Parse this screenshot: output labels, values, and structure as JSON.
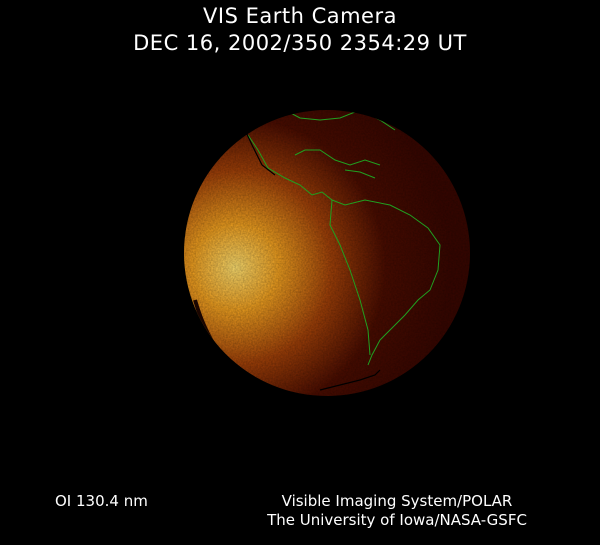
{
  "header": {
    "title": "VIS Earth Camera",
    "timestamp": "DEC 16, 2002/350 2354:29 UT"
  },
  "footer": {
    "wavelength": "OI  130.4 nm",
    "instrument": "Visible Imaging System/POLAR",
    "credit": "The University of Iowa/NASA-GSFC"
  },
  "colors": {
    "background": "#000000",
    "dayglow_bright": "#ffd040",
    "disk_dark": "#3a0800",
    "coastline": "#20a020"
  }
}
